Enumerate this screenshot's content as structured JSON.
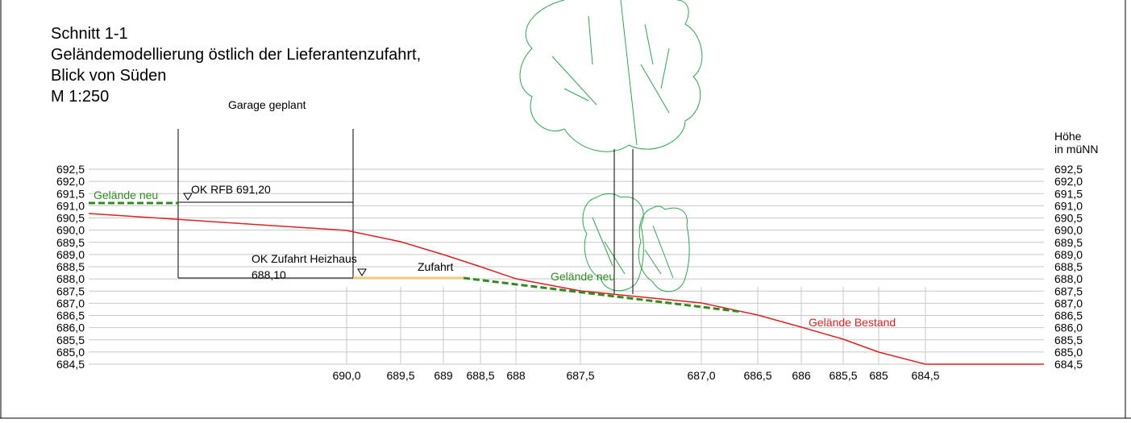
{
  "title": [
    "Schnitt 1-1",
    "Geländemodellierung östlich der Lieferantenzufahrt,",
    "Blick von Süden",
    "M 1:250"
  ],
  "building_label": "Garage geplant",
  "axis_title": [
    "Höhe",
    "in müNN"
  ],
  "elevations": [
    "692,5",
    "692,0",
    "691,5",
    "691,0",
    "690,5",
    "690,0",
    "689,5",
    "689,0",
    "688,5",
    "688,0",
    "687,5",
    "687,0",
    "686,5",
    "686,0",
    "685,5",
    "685,0",
    "684,5"
  ],
  "stations": [
    "690,0",
    "689,5",
    "689",
    "688,5",
    "688",
    "687,5",
    "687,0",
    "686,5",
    "686",
    "685,5",
    "685",
    "684,5"
  ],
  "annotations": {
    "gelaende_neu_left": "Gelände neu",
    "ok_rfb": "OK RFB 691,20",
    "ok_zufahrt": "OK Zufahrt Heizhaus",
    "ok_zufahrt_value": "688,10",
    "zufahrt": "Zufahrt",
    "gelaende_neu_mid": "Gelände neu",
    "gelaende_bestand": "Gelände Bestand"
  }
}
